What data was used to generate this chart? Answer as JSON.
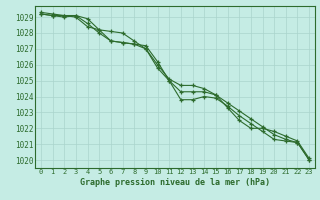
{
  "title": "Graphe pression niveau de la mer (hPa)",
  "bg_color": "#c5ece4",
  "grid_color": "#aad4cc",
  "line_color": "#2d6b2d",
  "border_color": "#2d6b2d",
  "x_ticks": [
    0,
    1,
    2,
    3,
    4,
    5,
    6,
    7,
    8,
    9,
    10,
    11,
    12,
    13,
    14,
    15,
    16,
    17,
    18,
    19,
    20,
    21,
    22,
    23
  ],
  "ylim": [
    1019.5,
    1029.7
  ],
  "yticks": [
    1020,
    1021,
    1022,
    1023,
    1024,
    1025,
    1026,
    1027,
    1028,
    1029
  ],
  "line1": [
    1029.3,
    1029.2,
    1029.1,
    1029.1,
    1028.9,
    1028.2,
    1027.5,
    1027.4,
    1027.3,
    1027.2,
    1026.2,
    1025.0,
    1023.8,
    1023.8,
    1024.0,
    1023.9,
    1023.4,
    1022.8,
    1022.3,
    1021.8,
    1021.3,
    1021.2,
    1021.1,
    1020.0
  ],
  "line2": [
    1029.2,
    1029.1,
    1029.0,
    1029.1,
    1028.6,
    1028.0,
    1027.5,
    1027.4,
    1027.3,
    1027.0,
    1025.8,
    1025.0,
    1024.3,
    1024.3,
    1024.3,
    1024.1,
    1023.6,
    1023.1,
    1022.6,
    1022.1,
    1021.6,
    1021.3,
    1021.1,
    1020.0
  ],
  "line3": [
    1029.2,
    1029.1,
    1029.1,
    1029.0,
    1028.4,
    1028.2,
    1028.1,
    1028.0,
    1027.5,
    1027.0,
    1026.0,
    1025.1,
    1024.7,
    1024.7,
    1024.5,
    1024.1,
    1023.3,
    1022.5,
    1022.0,
    1022.0,
    1021.8,
    1021.5,
    1021.2,
    1020.1
  ]
}
